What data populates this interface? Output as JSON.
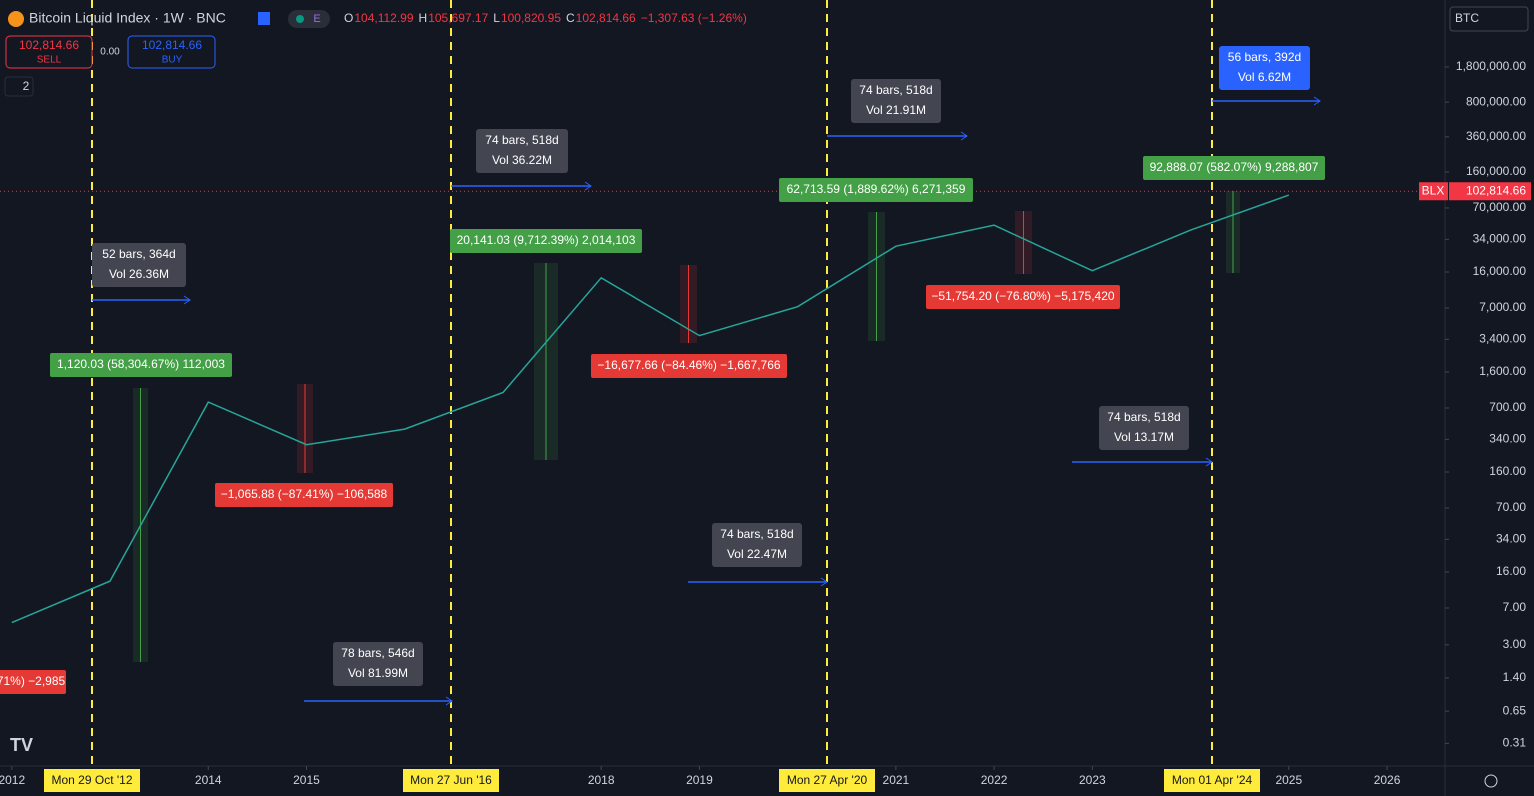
{
  "header": {
    "symbol": "Bitcoin Liquid Index · 1W · BNC",
    "badge": "E",
    "ohlc": [
      {
        "key": "O",
        "value": "104,112.99"
      },
      {
        "key": "H",
        "value": "105,697.17"
      },
      {
        "key": "L",
        "value": "100,820.95"
      },
      {
        "key": "C",
        "value": "102,814.66"
      }
    ],
    "change": "−1,307.63 (−1.26%)"
  },
  "trade": {
    "sell_price": "102,814.66",
    "sell": "SELL",
    "spread": "0.00",
    "buy_price": "102,814.66",
    "buy": "BUY"
  },
  "collapse": "2",
  "currency": "BTC",
  "ticker": "BLX",
  "chart_data": {
    "type": "line",
    "x": [
      2012,
      2013,
      2014,
      2015,
      2016,
      2017,
      2018,
      2019,
      2020,
      2021,
      2022,
      2023,
      2024,
      2025
    ],
    "series": [
      {
        "color": "#26a69a",
        "values": [
          5,
          13,
          800,
          300,
          430,
          1000,
          14000,
          3700,
          7200,
          29000,
          47000,
          16500,
          42000,
          94000
        ]
      }
    ],
    "log_scale": true,
    "xlim": [
      2011.88,
      2026.59
    ],
    "ylim": [
      0.184,
      8400000
    ],
    "yticks": [
      {
        "value": 1800000,
        "label": "1,800,000.00"
      },
      {
        "value": 800000,
        "label": "800,000.00"
      },
      {
        "value": 360000,
        "label": "360,000.00"
      },
      {
        "value": 160000,
        "label": "160,000.00"
      },
      {
        "value": 70000,
        "label": "70,000.00"
      },
      {
        "value": 34000,
        "label": "34,000.00"
      },
      {
        "value": 16000,
        "label": "16,000.00"
      },
      {
        "value": 7000,
        "label": "7,000.00"
      },
      {
        "value": 3400,
        "label": "3,400.00"
      },
      {
        "value": 1600,
        "label": "1,600.00"
      },
      {
        "value": 700,
        "label": "700.00"
      },
      {
        "value": 340,
        "label": "340.00"
      },
      {
        "value": 160,
        "label": "160.00"
      },
      {
        "value": 70,
        "label": "70.00"
      },
      {
        "value": 34,
        "label": "34.00"
      },
      {
        "value": 16,
        "label": "16.00"
      },
      {
        "value": 7,
        "label": "7.00"
      },
      {
        "value": 3,
        "label": "3.00"
      },
      {
        "value": 1.4,
        "label": "1.40"
      },
      {
        "value": 0.65,
        "label": "0.65"
      },
      {
        "value": 0.31,
        "label": "0.31"
      }
    ],
    "xticks": [
      2012,
      2014,
      2015,
      2018,
      2019,
      2021,
      2022,
      2023,
      2025,
      2026
    ],
    "last": {
      "value": 102814.66,
      "label": "102,814.66"
    }
  },
  "markers": [
    "Mon 29 Oct '12",
    "Mon 27 Jun '16",
    "Mon 27 Apr '20",
    "Mon 01 Apr '24"
  ],
  "measures": [
    {
      "bars": "52 bars, 364d",
      "vol": "Vol 26.36M"
    },
    {
      "bars": "74 bars, 518d",
      "vol": "Vol 36.22M"
    },
    {
      "bars": "74 bars, 518d",
      "vol": "Vol 21.91M"
    },
    {
      "bars": "56 bars, 392d",
      "vol": "Vol 6.62M"
    },
    {
      "bars": "74 bars, 518d",
      "vol": "Vol 13.17M"
    },
    {
      "bars": "74 bars, 518d",
      "vol": "Vol 22.47M"
    },
    {
      "bars": "78 bars, 546d",
      "vol": "Vol 81.99M"
    }
  ],
  "ranges": [
    "1,120.03 (58,304.67%) 112,003",
    "20,141.03 (9,712.39%) 2,014,103",
    "62,713.59 (1,889.62%) 6,271,359",
    "92,888.07 (582.07%) 9,288,807",
    "−1,065.88 (−87.41%) −106,588",
    "−16,677.66 (−84.46%) −1,667,766",
    "−51,754.20 (−76.80%) −5,175,420",
    "71%) −2,985"
  ]
}
